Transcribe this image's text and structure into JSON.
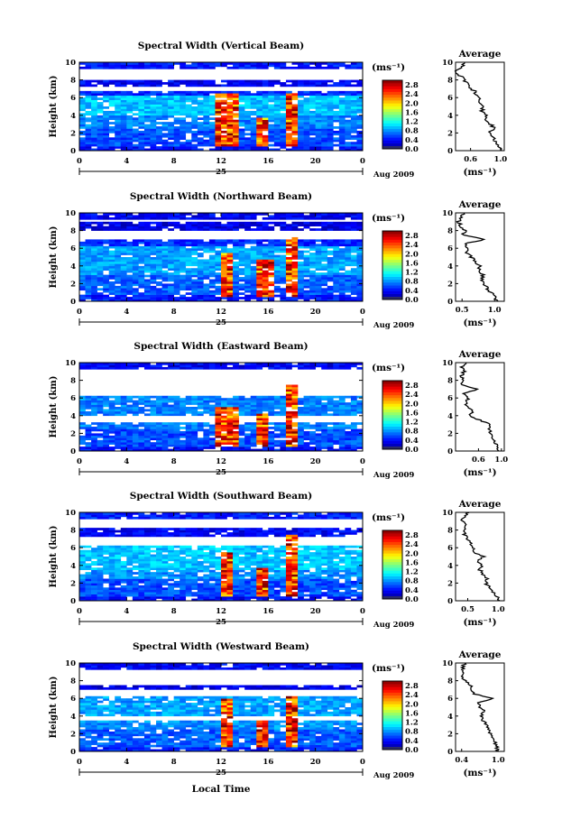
{
  "figure": {
    "xlabel": "Local Time",
    "date_label": "Aug 2009",
    "day_label": "25"
  },
  "chart_data": [
    {
      "type": "heatmap",
      "title": "Spectral Width (Vertical Beam)",
      "ylabel": "Height (km)",
      "xlim": [
        0,
        24
      ],
      "ylim": [
        0,
        10
      ],
      "xticks": [
        "0",
        "4",
        "8",
        "12",
        "16",
        "20",
        "0"
      ],
      "yticks": [
        "0",
        "2",
        "4",
        "6",
        "8",
        "10"
      ],
      "colorbar": {
        "label": "(ms⁻¹)",
        "ticks": [
          "0.0",
          "0.4",
          "0.8",
          "1.2",
          "1.6",
          "2.0",
          "2.4",
          "2.8"
        ],
        "range": [
          0,
          3.0
        ]
      },
      "grid": {
        "x_step_hours": 0.5,
        "y_step_km": 0.25
      },
      "layers": [
        [
          0,
          0.6,
          0.4
        ],
        [
          0.6,
          2.5,
          0.6
        ],
        [
          2.5,
          4,
          0.75
        ],
        [
          4,
          6.3,
          0.95
        ],
        [
          6.3,
          6.8,
          0.5
        ],
        [
          7.3,
          8.0,
          0.35
        ],
        [
          9.3,
          10,
          0.45
        ]
      ],
      "plumes": [
        [
          12.5,
          1.5,
          6.5
        ],
        [
          15.5,
          1.0,
          3.8
        ],
        [
          17.8,
          1.0,
          6.5
        ]
      ],
      "profile": {
        "title": "Average",
        "xlabel": "(ms⁻¹)",
        "xlim": [
          0.4,
          1.05
        ],
        "xticks": [
          "0.6",
          "1.0"
        ],
        "height_km": [
          0,
          0.5,
          1,
          1.5,
          2,
          2.5,
          3,
          3.5,
          4,
          4.5,
          5,
          5.5,
          6,
          6.5,
          7,
          7.5,
          8,
          8.5,
          9,
          9.5,
          10
        ],
        "values": [
          1.0,
          0.98,
          0.93,
          0.9,
          0.85,
          0.92,
          0.86,
          0.78,
          0.8,
          0.75,
          0.78,
          0.72,
          0.7,
          0.67,
          0.62,
          0.55,
          0.52,
          0.45,
          0.42,
          0.48,
          0.55
        ]
      }
    },
    {
      "type": "heatmap",
      "title": "Spectral Width (Northward Beam)",
      "ylabel": "Height (km)",
      "xlim": [
        0,
        24
      ],
      "ylim": [
        0,
        10
      ],
      "xticks": [
        "0",
        "4",
        "8",
        "12",
        "16",
        "20",
        "0"
      ],
      "yticks": [
        "0",
        "2",
        "4",
        "6",
        "8",
        "10"
      ],
      "colorbar": {
        "label": "(ms⁻¹)",
        "ticks": [
          "0.0",
          "0.4",
          "0.8",
          "1.2",
          "1.6",
          "2.0",
          "2.4",
          "2.8"
        ],
        "range": [
          0,
          3.0
        ]
      },
      "grid": {
        "x_step_hours": 0.5,
        "y_step_km": 0.25
      },
      "layers": [
        [
          0,
          0.8,
          0.45
        ],
        [
          0.8,
          3.0,
          0.65
        ],
        [
          3.0,
          6.3,
          0.85
        ],
        [
          6.3,
          7.0,
          0.5
        ],
        [
          8.0,
          9.0,
          0.3
        ],
        [
          9.3,
          10,
          0.35
        ]
      ],
      "plumes": [
        [
          12.5,
          1.0,
          5.5
        ],
        [
          15.8,
          1.5,
          4.8
        ],
        [
          18.0,
          1.0,
          7.3
        ]
      ],
      "profile": {
        "title": "Average",
        "xlabel": "(ms⁻¹)",
        "xlim": [
          0.4,
          1.15
        ],
        "xticks": [
          "0.5",
          "1.0"
        ],
        "height_km": [
          0,
          0.5,
          1,
          1.5,
          2,
          2.5,
          3,
          3.5,
          4,
          4.5,
          5,
          5.5,
          6,
          6.5,
          7,
          7.5,
          8,
          8.5,
          9,
          9.5,
          10
        ],
        "values": [
          1.05,
          1.0,
          0.95,
          0.88,
          0.84,
          0.8,
          0.82,
          0.75,
          0.78,
          0.7,
          0.64,
          0.58,
          0.56,
          0.54,
          0.85,
          0.5,
          0.55,
          0.48,
          0.45,
          0.48,
          0.52
        ]
      }
    },
    {
      "type": "heatmap",
      "title": "Spectral Width (Eastward Beam)",
      "ylabel": "Height (km)",
      "xlim": [
        0,
        24
      ],
      "ylim": [
        0,
        10
      ],
      "xticks": [
        "0",
        "4",
        "8",
        "12",
        "16",
        "20",
        "0"
      ],
      "yticks": [
        "0",
        "2",
        "4",
        "6",
        "8",
        "10"
      ],
      "colorbar": {
        "label": "(ms⁻¹)",
        "ticks": [
          "0.0",
          "0.4",
          "0.8",
          "1.2",
          "1.6",
          "2.0",
          "2.4",
          "2.8"
        ],
        "range": [
          0,
          3.0
        ]
      },
      "grid": {
        "x_step_hours": 0.5,
        "y_step_km": 0.25
      },
      "layers": [
        [
          0,
          0.6,
          0.4
        ],
        [
          0.6,
          2.5,
          0.6
        ],
        [
          2.5,
          3.2,
          0.75
        ],
        [
          4.0,
          6.3,
          0.75
        ],
        [
          9.3,
          10,
          0.35
        ]
      ],
      "plumes": [
        [
          12.5,
          1.5,
          5.0
        ],
        [
          15.5,
          1.0,
          4.2
        ],
        [
          17.8,
          1.0,
          7.5
        ]
      ],
      "profile": {
        "title": "Average",
        "xlabel": "(ms⁻¹)",
        "xlim": [
          0.2,
          1.05
        ],
        "xticks": [
          "0.6",
          "1.0"
        ],
        "height_km": [
          0,
          0.5,
          1,
          1.5,
          2,
          2.5,
          3,
          3.5,
          4,
          4.5,
          5,
          5.5,
          6,
          6.5,
          7,
          7.5,
          8,
          8.5,
          9,
          9.5,
          10
        ],
        "values": [
          0.95,
          0.92,
          0.88,
          0.85,
          0.82,
          0.78,
          0.8,
          0.62,
          0.45,
          0.5,
          0.4,
          0.38,
          0.42,
          0.35,
          0.6,
          0.28,
          0.32,
          0.3,
          0.35,
          0.3,
          0.4
        ]
      }
    },
    {
      "type": "heatmap",
      "title": "Spectral Width (Southward Beam)",
      "ylabel": "Height (km)",
      "xlim": [
        0,
        24
      ],
      "ylim": [
        0,
        10
      ],
      "xticks": [
        "0",
        "4",
        "8",
        "12",
        "16",
        "20",
        "0"
      ],
      "yticks": [
        "0",
        "2",
        "4",
        "6",
        "8",
        "10"
      ],
      "colorbar": {
        "label": "(ms⁻¹)",
        "ticks": [
          "0.0",
          "0.4",
          "0.8",
          "1.2",
          "1.6",
          "2.0",
          "2.4",
          "2.8"
        ],
        "range": [
          0,
          3.0
        ]
      },
      "grid": {
        "x_step_hours": 0.5,
        "y_step_km": 0.25
      },
      "layers": [
        [
          0,
          0.6,
          0.4
        ],
        [
          0.6,
          2.5,
          0.6
        ],
        [
          2.5,
          3.5,
          0.8
        ],
        [
          3.5,
          6.3,
          0.95
        ],
        [
          7.3,
          8.3,
          0.35
        ],
        [
          9.3,
          10,
          0.45
        ]
      ],
      "plumes": [
        [
          12.5,
          1.0,
          5.5
        ],
        [
          15.5,
          1.0,
          3.8
        ],
        [
          18.0,
          0.5,
          7.5
        ]
      ],
      "profile": {
        "title": "Average",
        "xlabel": "(ms⁻¹)",
        "xlim": [
          0.3,
          1.1
        ],
        "xticks": [
          "0.5",
          "1.0"
        ],
        "height_km": [
          0,
          0.5,
          1,
          1.5,
          2,
          2.5,
          3,
          3.5,
          4,
          4.5,
          5,
          5.5,
          6,
          6.5,
          7,
          7.5,
          8,
          8.5,
          9,
          9.5,
          10
        ],
        "values": [
          1.02,
          0.98,
          0.92,
          0.85,
          0.8,
          0.82,
          0.75,
          0.7,
          0.72,
          0.65,
          0.78,
          0.6,
          0.58,
          0.55,
          0.5,
          0.45,
          0.42,
          0.48,
          0.4,
          0.45,
          0.5
        ]
      }
    },
    {
      "type": "heatmap",
      "title": "Spectral Width (Westward Beam)",
      "ylabel": "Height (km)",
      "xlim": [
        0,
        24
      ],
      "ylim": [
        0,
        10
      ],
      "xticks": [
        "0",
        "4",
        "8",
        "12",
        "16",
        "20",
        "0"
      ],
      "yticks": [
        "0",
        "2",
        "4",
        "6",
        "8",
        "10"
      ],
      "colorbar": {
        "label": "(ms⁻¹)",
        "ticks": [
          "0.0",
          "0.4",
          "0.8",
          "1.2",
          "1.6",
          "2.0",
          "2.4",
          "2.8"
        ],
        "range": [
          0,
          3.0
        ]
      },
      "grid": {
        "x_step_hours": 0.5,
        "y_step_km": 0.25
      },
      "layers": [
        [
          0,
          0.6,
          0.45
        ],
        [
          0.6,
          2.5,
          0.65
        ],
        [
          2.5,
          3.5,
          0.8
        ],
        [
          4.0,
          6.3,
          0.85
        ],
        [
          7.0,
          7.5,
          0.3
        ],
        [
          9.3,
          10,
          0.35
        ]
      ],
      "plumes": [
        [
          12.5,
          1.0,
          6.0
        ],
        [
          15.5,
          1.0,
          3.6
        ],
        [
          18.0,
          1.0,
          6.3
        ]
      ],
      "profile": {
        "title": "Average",
        "xlabel": "(ms⁻¹)",
        "xlim": [
          0.3,
          1.1
        ],
        "xticks": [
          "0.4",
          "1.0"
        ],
        "height_km": [
          0,
          0.5,
          1,
          1.5,
          2,
          2.5,
          3,
          3.5,
          4,
          4.5,
          5,
          5.5,
          6,
          6.5,
          7,
          7.5,
          8,
          8.5,
          9,
          9.5,
          10
        ],
        "values": [
          1.0,
          0.98,
          0.95,
          0.9,
          0.88,
          0.85,
          0.8,
          0.75,
          0.72,
          0.78,
          0.7,
          0.68,
          0.9,
          0.6,
          0.58,
          0.55,
          0.45,
          0.42,
          0.4,
          0.42,
          0.45
        ]
      }
    }
  ]
}
